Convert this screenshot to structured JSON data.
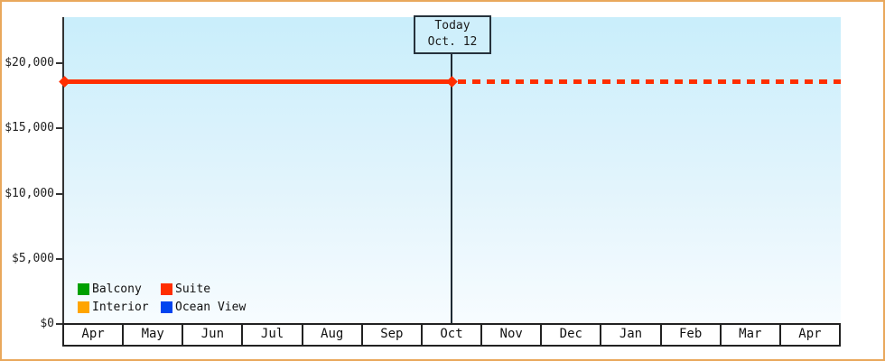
{
  "frame": {
    "border_color": "#e9a85c",
    "background_color": "#ffffff"
  },
  "chart_data": {
    "type": "line",
    "title": "",
    "xlabel": "",
    "ylabel": "",
    "grid": false,
    "ylim": [
      0,
      23300
    ],
    "plot_background_top": "#c9eefb",
    "plot_background_bottom": "#f7fcff",
    "axis_color": "#333333",
    "x_categories": [
      "Apr",
      "May",
      "Jun",
      "Jul",
      "Aug",
      "Sep",
      "Oct",
      "Nov",
      "Dec",
      "Jan",
      "Feb",
      "Mar",
      "Apr"
    ],
    "y_ticks": [
      {
        "label": "$20,000",
        "value": 20000
      },
      {
        "label": "$15,000",
        "value": 15000
      },
      {
        "label": "$10,000",
        "value": 10000
      },
      {
        "label": "$5,000",
        "value": 5000
      },
      {
        "label": "$0",
        "value": 0
      }
    ],
    "series": [
      {
        "name": "Suite",
        "color": "#ff2e00",
        "value_usd": 18600,
        "style": "solid before today, dotted projection after today",
        "points": [
          {
            "x": "Apr",
            "y": 18600
          },
          {
            "x": "Oct 12 (today)",
            "y": 18600
          }
        ],
        "projection_points": [
          {
            "x": "Oct 12 (today)",
            "y": 18600
          },
          {
            "x": "Apr (next year)",
            "y": 18600
          }
        ]
      },
      {
        "name": "Balcony",
        "color": "#00a000",
        "value_usd": null,
        "points": []
      },
      {
        "name": "Interior",
        "color": "#ffa500",
        "value_usd": null,
        "points": []
      },
      {
        "name": "Ocean View",
        "color": "#0044ef",
        "value_usd": null,
        "points": []
      }
    ],
    "annotations": {
      "today_label": "Today",
      "today_date": "Oct. 12",
      "today_month": "Oct"
    },
    "legend_position": "bottom-left inside plot"
  },
  "legend": {
    "items": [
      {
        "label": "Balcony",
        "color": "#00a000"
      },
      {
        "label": "Suite",
        "color": "#ff2e00"
      },
      {
        "label": "Interior",
        "color": "#ffa500"
      },
      {
        "label": "Ocean View",
        "color": "#0044ef"
      }
    ]
  }
}
